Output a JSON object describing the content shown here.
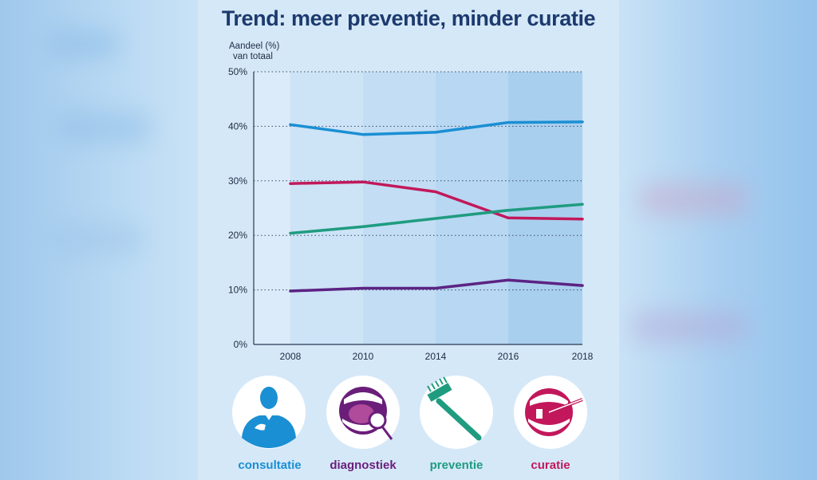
{
  "title": "Trend: meer preventie, minder curatie",
  "chart_data": {
    "type": "line",
    "ylabel_line1": "Aandeel (%)",
    "ylabel_line2": "van totaal",
    "categories": [
      "2008",
      "2010",
      "2014",
      "2016",
      "2018"
    ],
    "yticks": [
      "0%",
      "10%",
      "20%",
      "30%",
      "40%",
      "50%"
    ],
    "ylim": [
      0,
      50
    ],
    "series": [
      {
        "name": "consultatie",
        "color": "#1a8fd4",
        "values": [
          40.3,
          38.5,
          38.9,
          40.7,
          40.8
        ]
      },
      {
        "name": "curatie",
        "color": "#c2185b",
        "values": [
          29.5,
          29.8,
          28.0,
          23.2,
          23.0
        ]
      },
      {
        "name": "preventie",
        "color": "#1f9c80",
        "values": [
          20.4,
          21.6,
          23.1,
          24.6,
          25.7
        ]
      },
      {
        "name": "diagnostiek",
        "color": "#5b2383",
        "values": [
          9.8,
          10.3,
          10.3,
          11.8,
          10.8
        ]
      }
    ]
  },
  "legend": [
    {
      "label": "consultatie",
      "color": "#1a8fd4",
      "icon": "dentist-icon"
    },
    {
      "label": "diagnostiek",
      "color": "#6a1e7a",
      "icon": "mouth-mirror-icon"
    },
    {
      "label": "preventie",
      "color": "#1f9c80",
      "icon": "toothbrush-icon"
    },
    {
      "label": "curatie",
      "color": "#c2185b",
      "icon": "mouth-tooth-drill-icon"
    }
  ]
}
